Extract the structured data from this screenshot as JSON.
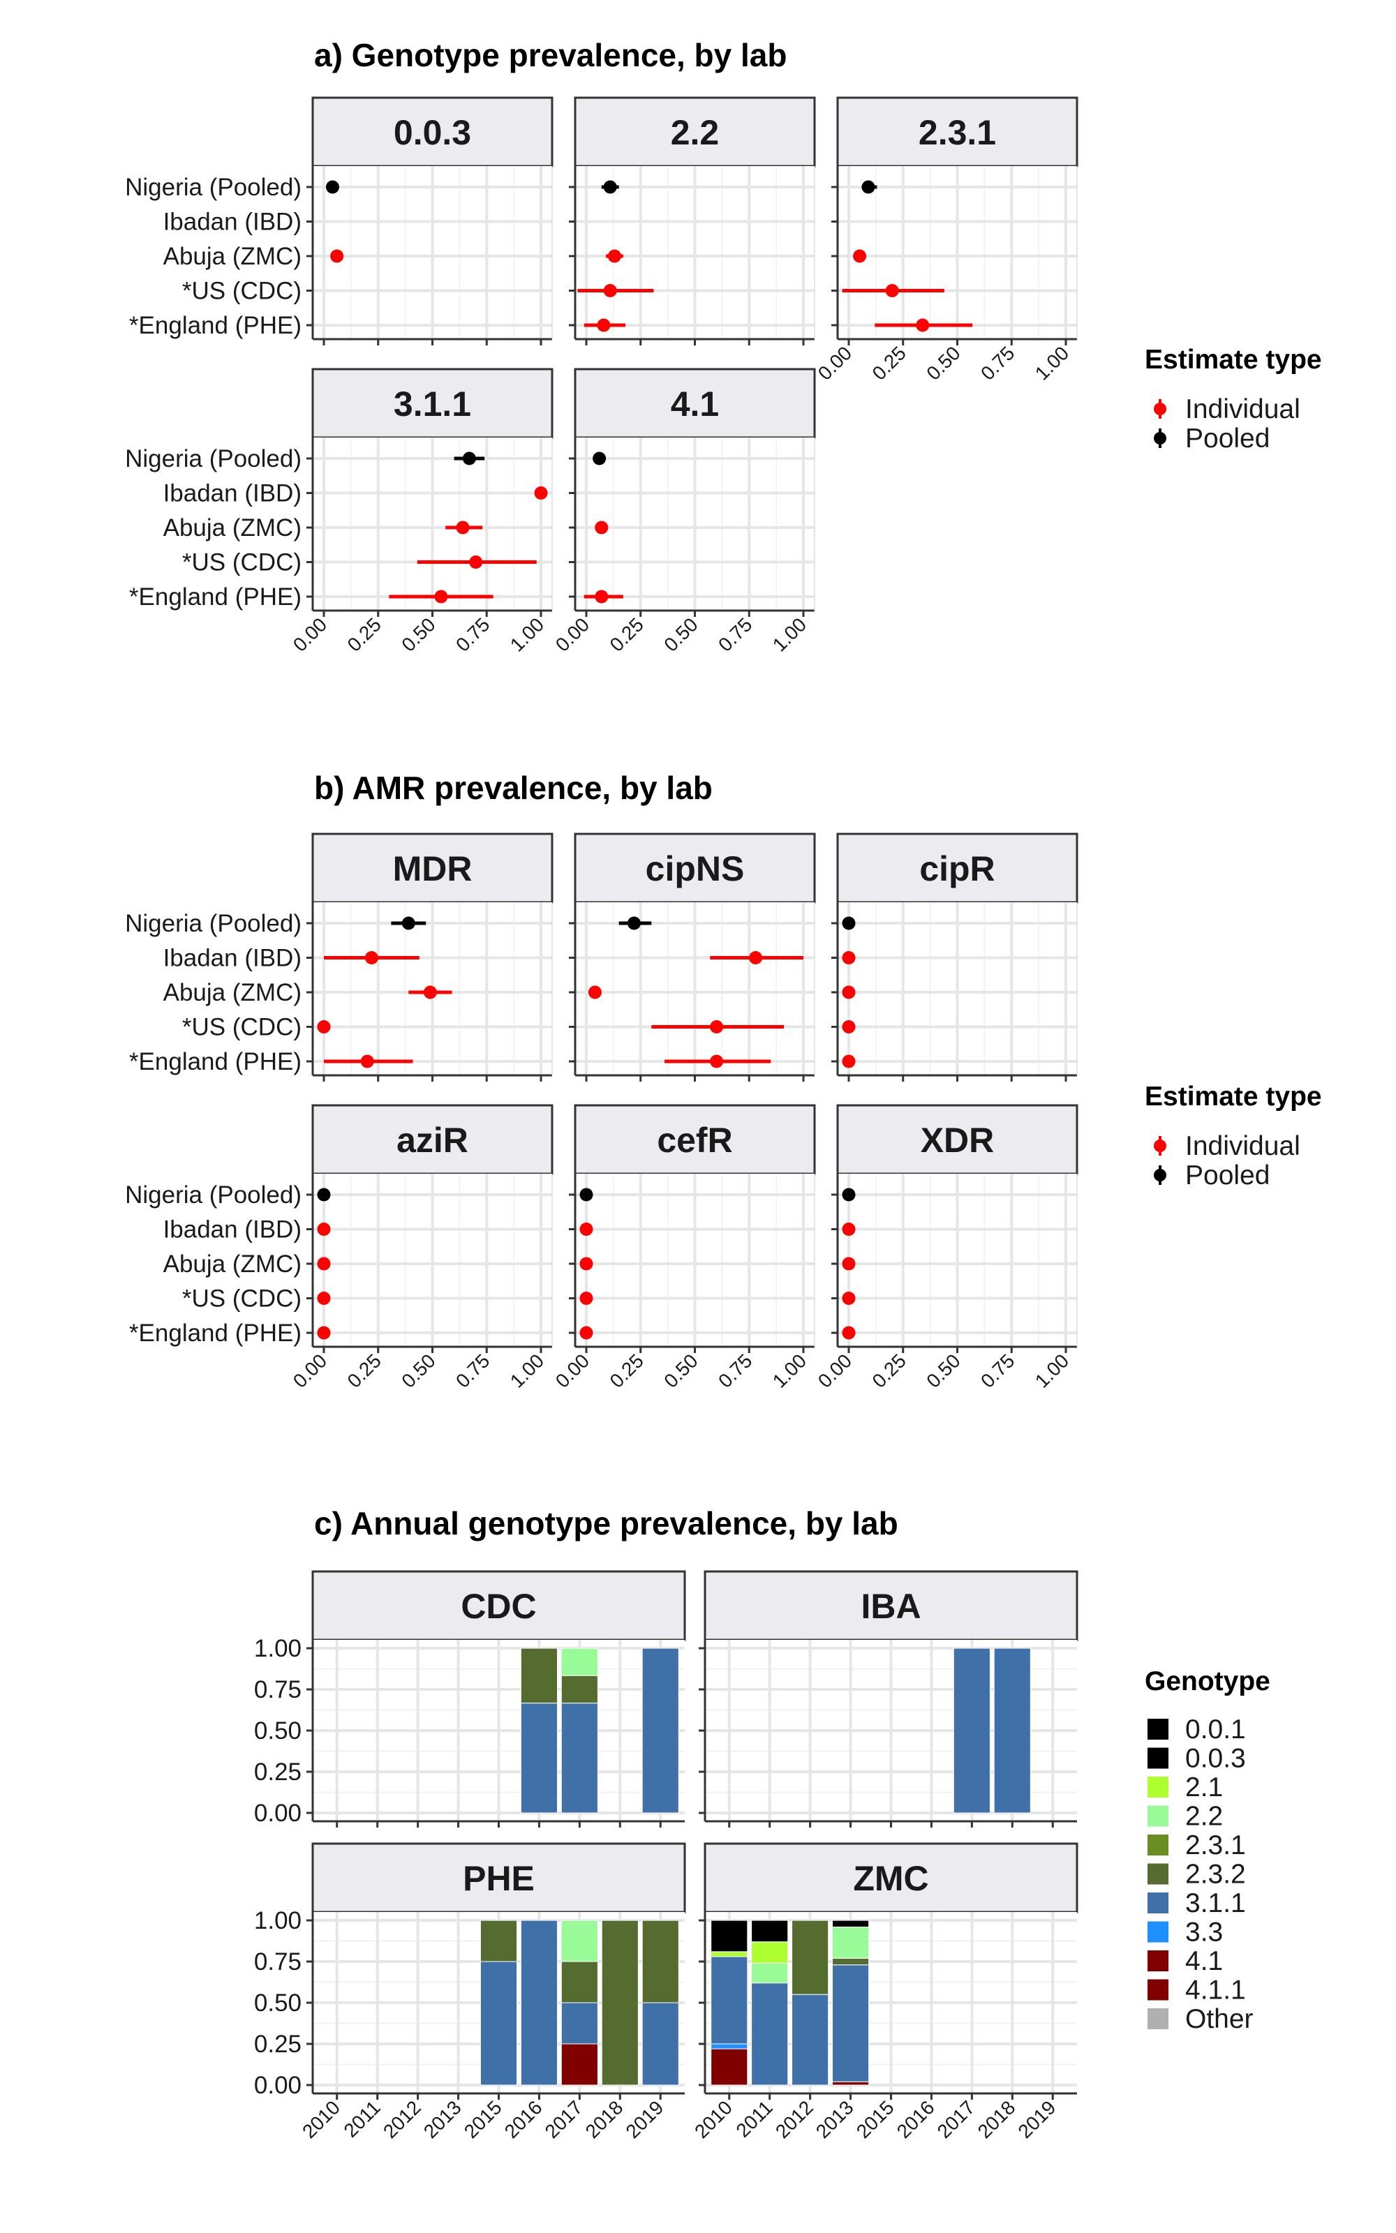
{
  "colors": {
    "individual": "#ff0000",
    "pooled": "#000000",
    "genotypes": {
      "0.0.1": "#000000",
      "0.0.3": "#000000",
      "2.1": "#adff2f",
      "2.2": "#98fb98",
      "2.3.1": "#6b8e23",
      "2.3.2": "#556b2f",
      "3.1.1": "#4070a8",
      "3.3": "#1e90ff",
      "4.1": "#800000",
      "4.1.1": "#800000",
      "Other": "#b0b0b0"
    }
  },
  "chart_data": [
    {
      "id": "a",
      "type": "scatter",
      "subtype": "point-range",
      "title": "a) Genotype prevalence, by lab",
      "facets": [
        "0.0.3",
        "2.2",
        "2.3.1",
        "3.1.1",
        "4.1"
      ],
      "categories": [
        "Nigeria (Pooled)",
        "Ibadan (IBD)",
        "Abuja (ZMC)",
        "*US (CDC)",
        "*England (PHE)"
      ],
      "xlim": [
        0,
        1
      ],
      "xticks": [
        "0.00",
        "0.25",
        "0.50",
        "0.75",
        "1.00"
      ],
      "legend": {
        "title": "Estimate type",
        "entries": [
          "Individual",
          "Pooled"
        ],
        "position": "right"
      },
      "series": [
        {
          "facet": "0.0.3",
          "points": [
            {
              "category": "Nigeria (Pooled)",
              "type": "Pooled",
              "estimate": 0.04,
              "lower": 0.03,
              "upper": 0.05
            },
            {
              "category": "Abuja (ZMC)",
              "type": "Individual",
              "estimate": 0.06,
              "lower": 0.04,
              "upper": 0.08
            }
          ]
        },
        {
          "facet": "2.2",
          "points": [
            {
              "category": "Nigeria (Pooled)",
              "type": "Pooled",
              "estimate": 0.11,
              "lower": 0.07,
              "upper": 0.15
            },
            {
              "category": "Abuja (ZMC)",
              "type": "Individual",
              "estimate": 0.13,
              "lower": 0.09,
              "upper": 0.17
            },
            {
              "category": "*US (CDC)",
              "type": "Individual",
              "estimate": 0.11,
              "lower": -0.04,
              "upper": 0.31
            },
            {
              "category": "*England (PHE)",
              "type": "Individual",
              "estimate": 0.08,
              "lower": -0.01,
              "upper": 0.18
            }
          ]
        },
        {
          "facet": "2.3.1",
          "points": [
            {
              "category": "Nigeria (Pooled)",
              "type": "Pooled",
              "estimate": 0.09,
              "lower": 0.06,
              "upper": 0.13
            },
            {
              "category": "Abuja (ZMC)",
              "type": "Individual",
              "estimate": 0.05,
              "lower": 0.03,
              "upper": 0.08
            },
            {
              "category": "*US (CDC)",
              "type": "Individual",
              "estimate": 0.2,
              "lower": -0.03,
              "upper": 0.44
            },
            {
              "category": "*England (PHE)",
              "type": "Individual",
              "estimate": 0.34,
              "lower": 0.12,
              "upper": 0.57
            }
          ]
        },
        {
          "facet": "3.1.1",
          "points": [
            {
              "category": "Nigeria (Pooled)",
              "type": "Pooled",
              "estimate": 0.67,
              "lower": 0.6,
              "upper": 0.74
            },
            {
              "category": "Ibadan (IBD)",
              "type": "Individual",
              "estimate": 1.0,
              "lower": 1.0,
              "upper": 1.0
            },
            {
              "category": "Abuja (ZMC)",
              "type": "Individual",
              "estimate": 0.64,
              "lower": 0.56,
              "upper": 0.73
            },
            {
              "category": "*US (CDC)",
              "type": "Individual",
              "estimate": 0.7,
              "lower": 0.43,
              "upper": 0.98
            },
            {
              "category": "*England (PHE)",
              "type": "Individual",
              "estimate": 0.54,
              "lower": 0.3,
              "upper": 0.78
            }
          ]
        },
        {
          "facet": "4.1",
          "points": [
            {
              "category": "Nigeria (Pooled)",
              "type": "Pooled",
              "estimate": 0.06,
              "lower": 0.04,
              "upper": 0.08
            },
            {
              "category": "Abuja (ZMC)",
              "type": "Individual",
              "estimate": 0.07,
              "lower": 0.04,
              "upper": 0.1
            },
            {
              "category": "*England (PHE)",
              "type": "Individual",
              "estimate": 0.07,
              "lower": -0.01,
              "upper": 0.17
            }
          ]
        }
      ]
    },
    {
      "id": "b",
      "type": "scatter",
      "subtype": "point-range",
      "title": "b) AMR prevalence, by lab",
      "facets": [
        "MDR",
        "cipNS",
        "cipR",
        "aziR",
        "cefR",
        "XDR"
      ],
      "categories": [
        "Nigeria (Pooled)",
        "Ibadan (IBD)",
        "Abuja (ZMC)",
        "*US (CDC)",
        "*England (PHE)"
      ],
      "xlim": [
        0,
        1
      ],
      "xticks": [
        "0.00",
        "0.25",
        "0.50",
        "0.75",
        "1.00"
      ],
      "legend": {
        "title": "Estimate type",
        "entries": [
          "Individual",
          "Pooled"
        ],
        "position": "right"
      },
      "series": [
        {
          "facet": "MDR",
          "points": [
            {
              "category": "Nigeria (Pooled)",
              "type": "Pooled",
              "estimate": 0.39,
              "lower": 0.31,
              "upper": 0.47
            },
            {
              "category": "Ibadan (IBD)",
              "type": "Individual",
              "estimate": 0.22,
              "lower": 0.0,
              "upper": 0.44
            },
            {
              "category": "Abuja (ZMC)",
              "type": "Individual",
              "estimate": 0.49,
              "lower": 0.39,
              "upper": 0.59
            },
            {
              "category": "*US (CDC)",
              "type": "Individual",
              "estimate": 0.0,
              "lower": 0.0,
              "upper": 0.0
            },
            {
              "category": "*England (PHE)",
              "type": "Individual",
              "estimate": 0.2,
              "lower": 0.0,
              "upper": 0.41
            }
          ]
        },
        {
          "facet": "cipNS",
          "points": [
            {
              "category": "Nigeria (Pooled)",
              "type": "Pooled",
              "estimate": 0.22,
              "lower": 0.15,
              "upper": 0.3
            },
            {
              "category": "Ibadan (IBD)",
              "type": "Individual",
              "estimate": 0.78,
              "lower": 0.57,
              "upper": 1.0
            },
            {
              "category": "Abuja (ZMC)",
              "type": "Individual",
              "estimate": 0.04,
              "lower": 0.01,
              "upper": 0.07
            },
            {
              "category": "*US (CDC)",
              "type": "Individual",
              "estimate": 0.6,
              "lower": 0.3,
              "upper": 0.91
            },
            {
              "category": "*England (PHE)",
              "type": "Individual",
              "estimate": 0.6,
              "lower": 0.36,
              "upper": 0.85
            }
          ]
        },
        {
          "facet": "cipR",
          "points": [
            {
              "category": "Nigeria (Pooled)",
              "type": "Pooled",
              "estimate": 0.0,
              "lower": 0.0,
              "upper": 0.0
            },
            {
              "category": "Ibadan (IBD)",
              "type": "Individual",
              "estimate": 0.0,
              "lower": 0.0,
              "upper": 0.0
            },
            {
              "category": "Abuja (ZMC)",
              "type": "Individual",
              "estimate": 0.0,
              "lower": 0.0,
              "upper": 0.0
            },
            {
              "category": "*US (CDC)",
              "type": "Individual",
              "estimate": 0.0,
              "lower": 0.0,
              "upper": 0.0
            },
            {
              "category": "*England (PHE)",
              "type": "Individual",
              "estimate": 0.0,
              "lower": 0.0,
              "upper": 0.0
            }
          ]
        },
        {
          "facet": "aziR",
          "points": [
            {
              "category": "Nigeria (Pooled)",
              "type": "Pooled",
              "estimate": 0.0,
              "lower": 0.0,
              "upper": 0.0
            },
            {
              "category": "Ibadan (IBD)",
              "type": "Individual",
              "estimate": 0.0,
              "lower": 0.0,
              "upper": 0.0
            },
            {
              "category": "Abuja (ZMC)",
              "type": "Individual",
              "estimate": 0.0,
              "lower": 0.0,
              "upper": 0.0
            },
            {
              "category": "*US (CDC)",
              "type": "Individual",
              "estimate": 0.0,
              "lower": 0.0,
              "upper": 0.0
            },
            {
              "category": "*England (PHE)",
              "type": "Individual",
              "estimate": 0.0,
              "lower": 0.0,
              "upper": 0.0
            }
          ]
        },
        {
          "facet": "cefR",
          "points": [
            {
              "category": "Nigeria (Pooled)",
              "type": "Pooled",
              "estimate": 0.0,
              "lower": 0.0,
              "upper": 0.0
            },
            {
              "category": "Ibadan (IBD)",
              "type": "Individual",
              "estimate": 0.0,
              "lower": 0.0,
              "upper": 0.0
            },
            {
              "category": "Abuja (ZMC)",
              "type": "Individual",
              "estimate": 0.0,
              "lower": 0.0,
              "upper": 0.0
            },
            {
              "category": "*US (CDC)",
              "type": "Individual",
              "estimate": 0.0,
              "lower": 0.0,
              "upper": 0.0
            },
            {
              "category": "*England (PHE)",
              "type": "Individual",
              "estimate": 0.0,
              "lower": 0.0,
              "upper": 0.0
            }
          ]
        },
        {
          "facet": "XDR",
          "points": [
            {
              "category": "Nigeria (Pooled)",
              "type": "Pooled",
              "estimate": 0.0,
              "lower": 0.0,
              "upper": 0.0
            },
            {
              "category": "Ibadan (IBD)",
              "type": "Individual",
              "estimate": 0.0,
              "lower": 0.0,
              "upper": 0.0
            },
            {
              "category": "Abuja (ZMC)",
              "type": "Individual",
              "estimate": 0.0,
              "lower": 0.0,
              "upper": 0.0
            },
            {
              "category": "*US (CDC)",
              "type": "Individual",
              "estimate": 0.0,
              "lower": 0.0,
              "upper": 0.0
            },
            {
              "category": "*England (PHE)",
              "type": "Individual",
              "estimate": 0.0,
              "lower": 0.0,
              "upper": 0.0
            }
          ]
        }
      ]
    },
    {
      "id": "c",
      "type": "bar",
      "subtype": "stacked-proportion",
      "title": "c) Annual genotype prevalence, by lab",
      "facets": [
        "CDC",
        "IBA",
        "PHE",
        "ZMC"
      ],
      "categories": [
        "2010",
        "2011",
        "2012",
        "2013",
        "2015",
        "2016",
        "2017",
        "2018",
        "2019"
      ],
      "ylim": [
        0,
        1
      ],
      "yticks": [
        "0.00",
        "0.25",
        "0.50",
        "0.75",
        "1.00"
      ],
      "legend": {
        "title": "Genotype",
        "entries": [
          "0.0.1",
          "0.0.3",
          "2.1",
          "2.2",
          "2.3.1",
          "2.3.2",
          "3.1.1",
          "3.3",
          "4.1",
          "4.1.1",
          "Other"
        ],
        "position": "right"
      },
      "series": [
        {
          "facet": "CDC",
          "bars": [
            {
              "year": "2016",
              "stack": [
                {
                  "genotype": "3.1.1",
                  "value": 0.667
                },
                {
                  "genotype": "2.3.2",
                  "value": 0.333
                }
              ]
            },
            {
              "year": "2017",
              "stack": [
                {
                  "genotype": "3.1.1",
                  "value": 0.667
                },
                {
                  "genotype": "2.3.2",
                  "value": 0.167
                },
                {
                  "genotype": "2.2",
                  "value": 0.166
                }
              ]
            },
            {
              "year": "2019",
              "stack": [
                {
                  "genotype": "3.1.1",
                  "value": 1.0
                }
              ]
            }
          ]
        },
        {
          "facet": "IBA",
          "bars": [
            {
              "year": "2017",
              "stack": [
                {
                  "genotype": "3.1.1",
                  "value": 1.0
                }
              ]
            },
            {
              "year": "2018",
              "stack": [
                {
                  "genotype": "3.1.1",
                  "value": 1.0
                }
              ]
            }
          ]
        },
        {
          "facet": "PHE",
          "bars": [
            {
              "year": "2015",
              "stack": [
                {
                  "genotype": "3.1.1",
                  "value": 0.75
                },
                {
                  "genotype": "2.3.2",
                  "value": 0.25
                }
              ]
            },
            {
              "year": "2016",
              "stack": [
                {
                  "genotype": "3.1.1",
                  "value": 1.0
                }
              ]
            },
            {
              "year": "2017",
              "stack": [
                {
                  "genotype": "4.1",
                  "value": 0.25
                },
                {
                  "genotype": "3.1.1",
                  "value": 0.25
                },
                {
                  "genotype": "2.3.2",
                  "value": 0.25
                },
                {
                  "genotype": "2.2",
                  "value": 0.25
                }
              ]
            },
            {
              "year": "2018",
              "stack": [
                {
                  "genotype": "2.3.2",
                  "value": 1.0
                }
              ]
            },
            {
              "year": "2019",
              "stack": [
                {
                  "genotype": "3.1.1",
                  "value": 0.5
                },
                {
                  "genotype": "2.3.2",
                  "value": 0.5
                }
              ]
            }
          ]
        },
        {
          "facet": "ZMC",
          "bars": [
            {
              "year": "2010",
              "stack": [
                {
                  "genotype": "4.1",
                  "value": 0.22
                },
                {
                  "genotype": "3.3",
                  "value": 0.03
                },
                {
                  "genotype": "3.1.1",
                  "value": 0.53
                },
                {
                  "genotype": "2.1",
                  "value": 0.03
                },
                {
                  "genotype": "0.0.3",
                  "value": 0.19
                }
              ]
            },
            {
              "year": "2011",
              "stack": [
                {
                  "genotype": "3.1.1",
                  "value": 0.62
                },
                {
                  "genotype": "2.2",
                  "value": 0.12
                },
                {
                  "genotype": "2.1",
                  "value": 0.13
                },
                {
                  "genotype": "0.0.3",
                  "value": 0.13
                }
              ]
            },
            {
              "year": "2012",
              "stack": [
                {
                  "genotype": "3.1.1",
                  "value": 0.55
                },
                {
                  "genotype": "2.3.2",
                  "value": 0.45
                }
              ]
            },
            {
              "year": "2013",
              "stack": [
                {
                  "genotype": "4.1",
                  "value": 0.02
                },
                {
                  "genotype": "3.1.1",
                  "value": 0.71
                },
                {
                  "genotype": "2.3.2",
                  "value": 0.04
                },
                {
                  "genotype": "2.2",
                  "value": 0.19
                },
                {
                  "genotype": "0.0.3",
                  "value": 0.04
                }
              ]
            }
          ]
        }
      ]
    }
  ]
}
